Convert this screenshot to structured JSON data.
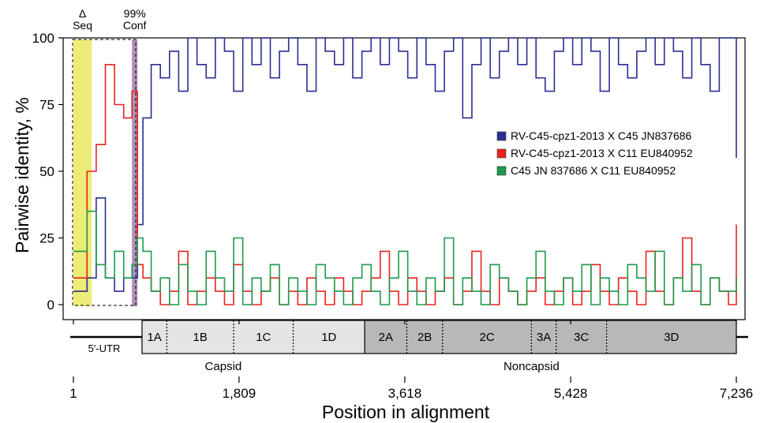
{
  "chart_data": {
    "type": "line",
    "xlabel": "Position in alignment",
    "ylabel": "Pairwise identity, %",
    "xlim": [
      1,
      7236
    ],
    "ylim": [
      0,
      100
    ],
    "x_ticks": [
      1,
      1809,
      3618,
      5428,
      7236
    ],
    "x_tick_labels": [
      "1",
      "1,809",
      "3,618",
      "5,428",
      "7,236"
    ],
    "y_ticks": [
      0,
      25,
      50,
      75,
      100
    ],
    "y_tick_labels": [
      "0",
      "25",
      "50",
      "75",
      "100"
    ],
    "legend_position": "right-middle",
    "highlight_regions": [
      {
        "label_top": "Δ",
        "label_bottom": "Seq",
        "x_range": [
          1,
          200
        ],
        "color": "#ecec78"
      },
      {
        "label_top": "99%",
        "label_bottom": "Conf",
        "x_range": [
          640,
          700
        ],
        "color": "#b08fb8"
      }
    ],
    "series": [
      {
        "name": "RV-C45-cpz1-2013 X C45 JN837686",
        "color": "#2b2f94",
        "x": [
          1,
          150,
          250,
          350,
          450,
          550,
          640,
          700,
          760,
          850,
          950,
          1050,
          1150,
          1250,
          1350,
          1450,
          1550,
          1650,
          1750,
          1850,
          1950,
          2050,
          2150,
          2250,
          2350,
          2450,
          2550,
          2650,
          2750,
          2850,
          2950,
          3050,
          3150,
          3250,
          3350,
          3450,
          3550,
          3650,
          3750,
          3850,
          3950,
          4050,
          4150,
          4250,
          4350,
          4450,
          4550,
          4650,
          4750,
          4850,
          4950,
          5050,
          5150,
          5250,
          5350,
          5450,
          5550,
          5650,
          5750,
          5850,
          5950,
          6050,
          6150,
          6250,
          6350,
          6450,
          6550,
          6650,
          6750,
          6850,
          6950,
          7050,
          7150,
          7236
        ],
        "y": [
          5,
          10,
          40,
          10,
          5,
          10,
          10,
          30,
          70,
          90,
          85,
          95,
          80,
          100,
          90,
          85,
          100,
          95,
          80,
          100,
          90,
          100,
          85,
          95,
          100,
          90,
          80,
          100,
          95,
          90,
          100,
          85,
          95,
          100,
          90,
          100,
          95,
          85,
          100,
          90,
          80,
          95,
          100,
          70,
          90,
          100,
          85,
          95,
          100,
          90,
          100,
          85,
          80,
          95,
          100,
          90,
          100,
          95,
          80,
          100,
          90,
          85,
          95,
          100,
          90,
          100,
          95,
          85,
          100,
          90,
          80,
          100,
          100,
          55
        ]
      },
      {
        "name": "RV-C45-cpz1-2013 X C11 EU840952",
        "color": "#e8231f",
        "x": [
          1,
          150,
          250,
          350,
          450,
          550,
          640,
          700,
          760,
          850,
          950,
          1050,
          1150,
          1250,
          1350,
          1450,
          1550,
          1650,
          1750,
          1850,
          1950,
          2050,
          2150,
          2250,
          2350,
          2450,
          2550,
          2650,
          2750,
          2850,
          2950,
          3050,
          3150,
          3250,
          3350,
          3450,
          3550,
          3650,
          3750,
          3850,
          3950,
          4050,
          4150,
          4250,
          4350,
          4450,
          4550,
          4650,
          4750,
          4850,
          4950,
          5050,
          5150,
          5250,
          5350,
          5450,
          5550,
          5650,
          5750,
          5850,
          5950,
          6050,
          6150,
          6250,
          6350,
          6450,
          6550,
          6650,
          6750,
          6850,
          6950,
          7050,
          7150,
          7236
        ],
        "y": [
          10,
          50,
          60,
          90,
          75,
          70,
          80,
          15,
          10,
          5,
          0,
          5,
          20,
          0,
          5,
          10,
          5,
          0,
          15,
          5,
          0,
          5,
          10,
          0,
          5,
          0,
          10,
          5,
          0,
          10,
          5,
          0,
          5,
          10,
          20,
          5,
          0,
          10,
          5,
          0,
          5,
          10,
          0,
          5,
          20,
          5,
          0,
          10,
          5,
          0,
          5,
          10,
          0,
          5,
          10,
          0,
          5,
          15,
          5,
          0,
          10,
          5,
          0,
          20,
          5,
          0,
          10,
          25,
          5,
          0,
          10,
          5,
          0,
          30
        ]
      },
      {
        "name": "C45 JN 837686 X C11 EU840952",
        "color": "#1f9a4e",
        "x": [
          1,
          150,
          250,
          350,
          450,
          550,
          640,
          700,
          760,
          850,
          950,
          1050,
          1150,
          1250,
          1350,
          1450,
          1550,
          1650,
          1750,
          1850,
          1950,
          2050,
          2150,
          2250,
          2350,
          2450,
          2550,
          2650,
          2750,
          2850,
          2950,
          3050,
          3150,
          3250,
          3350,
          3450,
          3550,
          3650,
          3750,
          3850,
          3950,
          4050,
          4150,
          4250,
          4350,
          4450,
          4550,
          4650,
          4750,
          4850,
          4950,
          5050,
          5150,
          5250,
          5350,
          5450,
          5550,
          5650,
          5750,
          5850,
          5950,
          6050,
          6150,
          6250,
          6350,
          6450,
          6550,
          6650,
          6750,
          6850,
          6950,
          7050,
          7150,
          7236
        ],
        "y": [
          20,
          35,
          15,
          10,
          20,
          10,
          15,
          25,
          20,
          5,
          10,
          0,
          15,
          5,
          0,
          20,
          10,
          5,
          25,
          0,
          10,
          5,
          15,
          0,
          10,
          5,
          0,
          15,
          10,
          5,
          0,
          10,
          15,
          5,
          0,
          10,
          20,
          5,
          0,
          10,
          5,
          25,
          0,
          10,
          5,
          0,
          15,
          10,
          5,
          0,
          10,
          20,
          5,
          0,
          10,
          5,
          15,
          0,
          10,
          5,
          0,
          15,
          10,
          5,
          20,
          0,
          10,
          5,
          15,
          0,
          10,
          5,
          5,
          10
        ]
      }
    ],
    "genome_map": {
      "utr_label": "5′-UTR",
      "segments": [
        {
          "label": "1A",
          "start": 750,
          "end": 1020,
          "group": "capsid"
        },
        {
          "label": "1B",
          "start": 1020,
          "end": 1750,
          "group": "capsid"
        },
        {
          "label": "1C",
          "start": 1750,
          "end": 2400,
          "group": "capsid"
        },
        {
          "label": "1D",
          "start": 2400,
          "end": 3180,
          "group": "capsid"
        },
        {
          "label": "2A",
          "start": 3180,
          "end": 3640,
          "group": "noncapsid"
        },
        {
          "label": "2B",
          "start": 3640,
          "end": 4030,
          "group": "noncapsid"
        },
        {
          "label": "2C",
          "start": 4030,
          "end": 5000,
          "group": "noncapsid"
        },
        {
          "label": "3A",
          "start": 5000,
          "end": 5270,
          "group": "noncapsid"
        },
        {
          "label": "3C",
          "start": 5270,
          "end": 5820,
          "group": "noncapsid"
        },
        {
          "label": "3D",
          "start": 5820,
          "end": 7236,
          "group": "noncapsid"
        }
      ],
      "groups": [
        {
          "label": "Capsid",
          "x": 1809
        },
        {
          "label": "Noncapsid",
          "x": 5000
        }
      ]
    }
  }
}
